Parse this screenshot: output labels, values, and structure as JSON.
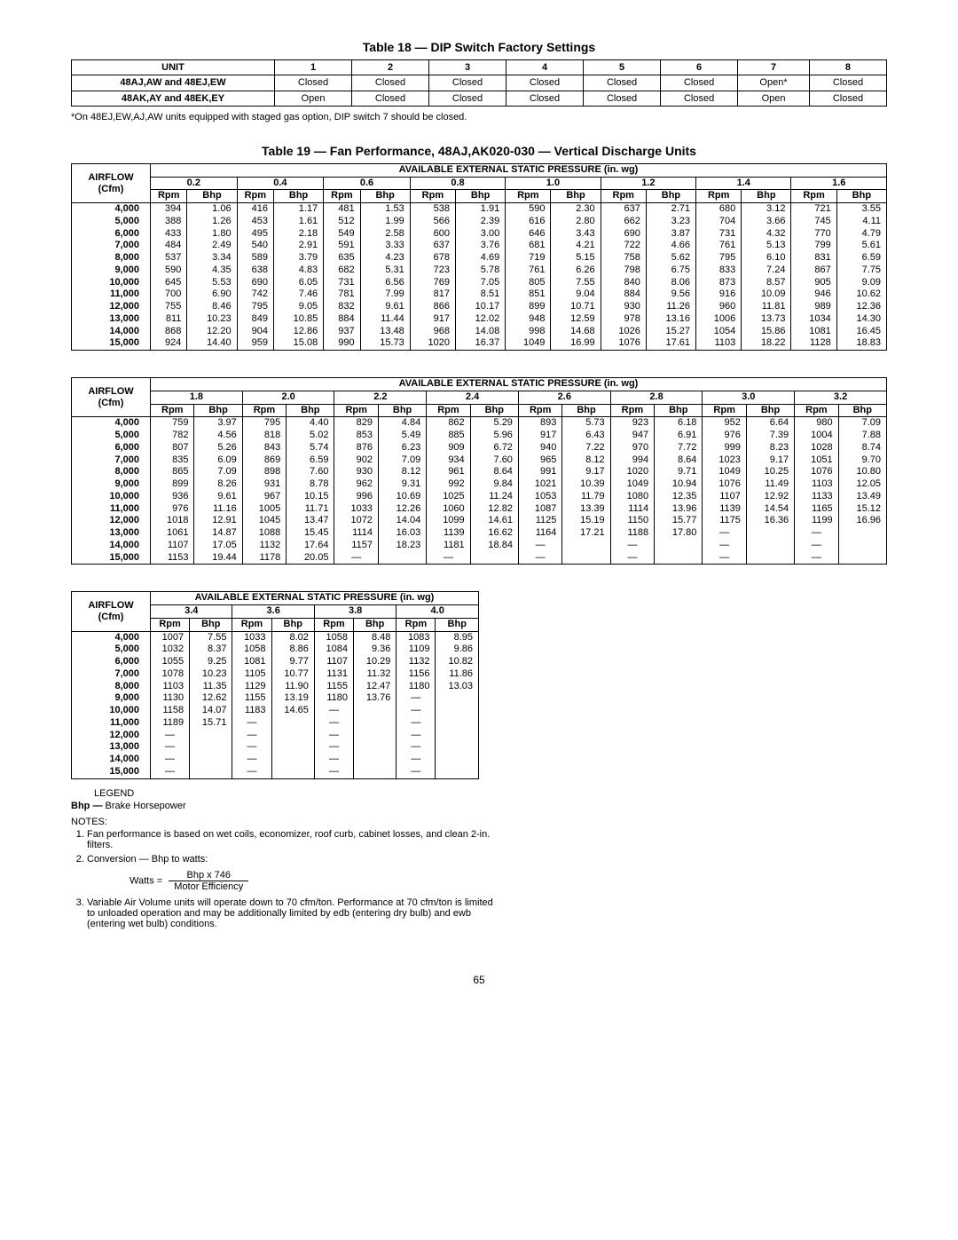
{
  "table18": {
    "title": "Table 18 — DIP Switch Factory Settings",
    "headers": [
      "UNIT",
      "1",
      "2",
      "3",
      "4",
      "5",
      "6",
      "7",
      "8"
    ],
    "rows": [
      {
        "unit": "48AJ,AW and 48EJ,EW",
        "cells": [
          "Closed",
          "Closed",
          "Closed",
          "Closed",
          "Closed",
          "Closed",
          "Open*",
          "Closed"
        ]
      },
      {
        "unit": "48AK,AY and 48EK,EY",
        "cells": [
          "Open",
          "Closed",
          "Closed",
          "Closed",
          "Closed",
          "Closed",
          "Open",
          "Closed"
        ]
      }
    ],
    "footnote": "*On 48EJ,EW,AJ,AW units equipped with staged gas option, DIP switch 7 should be closed."
  },
  "table19": {
    "title": "Table 19 — Fan Performance, 48AJ,AK020-030 — Vertical Discharge Units",
    "airflow_label_l1": "AIRFLOW",
    "airflow_label_l2": "(Cfm)",
    "pressure_header": "AVAILABLE EXTERNAL STATIC PRESSURE (in. wg)",
    "sub_rpm": "Rpm",
    "sub_bhp": "Bhp",
    "airflows": [
      "4,000",
      "5,000",
      "6,000",
      "7,000",
      "8,000",
      "9,000",
      "10,000",
      "11,000",
      "12,000",
      "13,000",
      "14,000",
      "15,000"
    ],
    "set1": {
      "pressures": [
        "0.2",
        "0.4",
        "0.6",
        "0.8",
        "1.0",
        "1.2",
        "1.4",
        "1.6"
      ],
      "rows": [
        [
          [
            "394",
            "1.06"
          ],
          [
            "416",
            "1.17"
          ],
          [
            "481",
            "1.53"
          ],
          [
            "538",
            "1.91"
          ],
          [
            "590",
            "2.30"
          ],
          [
            "637",
            "2.71"
          ],
          [
            "680",
            "3.12"
          ],
          [
            "721",
            "3.55"
          ]
        ],
        [
          [
            "388",
            "1.26"
          ],
          [
            "453",
            "1.61"
          ],
          [
            "512",
            "1.99"
          ],
          [
            "566",
            "2.39"
          ],
          [
            "616",
            "2.80"
          ],
          [
            "662",
            "3.23"
          ],
          [
            "704",
            "3.66"
          ],
          [
            "745",
            "4.11"
          ]
        ],
        [
          [
            "433",
            "1.80"
          ],
          [
            "495",
            "2.18"
          ],
          [
            "549",
            "2.58"
          ],
          [
            "600",
            "3.00"
          ],
          [
            "646",
            "3.43"
          ],
          [
            "690",
            "3.87"
          ],
          [
            "731",
            "4.32"
          ],
          [
            "770",
            "4.79"
          ]
        ],
        [
          [
            "484",
            "2.49"
          ],
          [
            "540",
            "2.91"
          ],
          [
            "591",
            "3.33"
          ],
          [
            "637",
            "3.76"
          ],
          [
            "681",
            "4.21"
          ],
          [
            "722",
            "4.66"
          ],
          [
            "761",
            "5.13"
          ],
          [
            "799",
            "5.61"
          ]
        ],
        [
          [
            "537",
            "3.34"
          ],
          [
            "589",
            "3.79"
          ],
          [
            "635",
            "4.23"
          ],
          [
            "678",
            "4.69"
          ],
          [
            "719",
            "5.15"
          ],
          [
            "758",
            "5.62"
          ],
          [
            "795",
            "6.10"
          ],
          [
            "831",
            "6.59"
          ]
        ],
        [
          [
            "590",
            "4.35"
          ],
          [
            "638",
            "4.83"
          ],
          [
            "682",
            "5.31"
          ],
          [
            "723",
            "5.78"
          ],
          [
            "761",
            "6.26"
          ],
          [
            "798",
            "6.75"
          ],
          [
            "833",
            "7.24"
          ],
          [
            "867",
            "7.75"
          ]
        ],
        [
          [
            "645",
            "5.53"
          ],
          [
            "690",
            "6.05"
          ],
          [
            "731",
            "6.56"
          ],
          [
            "769",
            "7.05"
          ],
          [
            "805",
            "7.55"
          ],
          [
            "840",
            "8.06"
          ],
          [
            "873",
            "8.57"
          ],
          [
            "905",
            "9.09"
          ]
        ],
        [
          [
            "700",
            "6.90"
          ],
          [
            "742",
            "7.46"
          ],
          [
            "781",
            "7.99"
          ],
          [
            "817",
            "8.51"
          ],
          [
            "851",
            "9.04"
          ],
          [
            "884",
            "9.56"
          ],
          [
            "916",
            "10.09"
          ],
          [
            "946",
            "10.62"
          ]
        ],
        [
          [
            "755",
            "8.46"
          ],
          [
            "795",
            "9.05"
          ],
          [
            "832",
            "9.61"
          ],
          [
            "866",
            "10.17"
          ],
          [
            "899",
            "10.71"
          ],
          [
            "930",
            "11.26"
          ],
          [
            "960",
            "11.81"
          ],
          [
            "989",
            "12.36"
          ]
        ],
        [
          [
            "811",
            "10.23"
          ],
          [
            "849",
            "10.85"
          ],
          [
            "884",
            "11.44"
          ],
          [
            "917",
            "12.02"
          ],
          [
            "948",
            "12.59"
          ],
          [
            "978",
            "13.16"
          ],
          [
            "1006",
            "13.73"
          ],
          [
            "1034",
            "14.30"
          ]
        ],
        [
          [
            "868",
            "12.20"
          ],
          [
            "904",
            "12.86"
          ],
          [
            "937",
            "13.48"
          ],
          [
            "968",
            "14.08"
          ],
          [
            "998",
            "14.68"
          ],
          [
            "1026",
            "15.27"
          ],
          [
            "1054",
            "15.86"
          ],
          [
            "1081",
            "16.45"
          ]
        ],
        [
          [
            "924",
            "14.40"
          ],
          [
            "959",
            "15.08"
          ],
          [
            "990",
            "15.73"
          ],
          [
            "1020",
            "16.37"
          ],
          [
            "1049",
            "16.99"
          ],
          [
            "1076",
            "17.61"
          ],
          [
            "1103",
            "18.22"
          ],
          [
            "1128",
            "18.83"
          ]
        ]
      ]
    },
    "set2": {
      "pressures": [
        "1.8",
        "2.0",
        "2.2",
        "2.4",
        "2.6",
        "2.8",
        "3.0",
        "3.2"
      ],
      "rows": [
        [
          [
            "759",
            "3.97"
          ],
          [
            "795",
            "4.40"
          ],
          [
            "829",
            "4.84"
          ],
          [
            "862",
            "5.29"
          ],
          [
            "893",
            "5.73"
          ],
          [
            "923",
            "6.18"
          ],
          [
            "952",
            "6.64"
          ],
          [
            "980",
            "7.09"
          ]
        ],
        [
          [
            "782",
            "4.56"
          ],
          [
            "818",
            "5.02"
          ],
          [
            "853",
            "5.49"
          ],
          [
            "885",
            "5.96"
          ],
          [
            "917",
            "6.43"
          ],
          [
            "947",
            "6.91"
          ],
          [
            "976",
            "7.39"
          ],
          [
            "1004",
            "7.88"
          ]
        ],
        [
          [
            "807",
            "5.26"
          ],
          [
            "843",
            "5.74"
          ],
          [
            "876",
            "6.23"
          ],
          [
            "909",
            "6.72"
          ],
          [
            "940",
            "7.22"
          ],
          [
            "970",
            "7.72"
          ],
          [
            "999",
            "8.23"
          ],
          [
            "1028",
            "8.74"
          ]
        ],
        [
          [
            "835",
            "6.09"
          ],
          [
            "869",
            "6.59"
          ],
          [
            "902",
            "7.09"
          ],
          [
            "934",
            "7.60"
          ],
          [
            "965",
            "8.12"
          ],
          [
            "994",
            "8.64"
          ],
          [
            "1023",
            "9.17"
          ],
          [
            "1051",
            "9.70"
          ]
        ],
        [
          [
            "865",
            "7.09"
          ],
          [
            "898",
            "7.60"
          ],
          [
            "930",
            "8.12"
          ],
          [
            "961",
            "8.64"
          ],
          [
            "991",
            "9.17"
          ],
          [
            "1020",
            "9.71"
          ],
          [
            "1049",
            "10.25"
          ],
          [
            "1076",
            "10.80"
          ]
        ],
        [
          [
            "899",
            "8.26"
          ],
          [
            "931",
            "8.78"
          ],
          [
            "962",
            "9.31"
          ],
          [
            "992",
            "9.84"
          ],
          [
            "1021",
            "10.39"
          ],
          [
            "1049",
            "10.94"
          ],
          [
            "1076",
            "11.49"
          ],
          [
            "1103",
            "12.05"
          ]
        ],
        [
          [
            "936",
            "9.61"
          ],
          [
            "967",
            "10.15"
          ],
          [
            "996",
            "10.69"
          ],
          [
            "1025",
            "11.24"
          ],
          [
            "1053",
            "11.79"
          ],
          [
            "1080",
            "12.35"
          ],
          [
            "1107",
            "12.92"
          ],
          [
            "1133",
            "13.49"
          ]
        ],
        [
          [
            "976",
            "11.16"
          ],
          [
            "1005",
            "11.71"
          ],
          [
            "1033",
            "12.26"
          ],
          [
            "1060",
            "12.82"
          ],
          [
            "1087",
            "13.39"
          ],
          [
            "1114",
            "13.96"
          ],
          [
            "1139",
            "14.54"
          ],
          [
            "1165",
            "15.12"
          ]
        ],
        [
          [
            "1018",
            "12.91"
          ],
          [
            "1045",
            "13.47"
          ],
          [
            "1072",
            "14.04"
          ],
          [
            "1099",
            "14.61"
          ],
          [
            "1125",
            "15.19"
          ],
          [
            "1150",
            "15.77"
          ],
          [
            "1175",
            "16.36"
          ],
          [
            "1199",
            "16.96"
          ]
        ],
        [
          [
            "1061",
            "14.87"
          ],
          [
            "1088",
            "15.45"
          ],
          [
            "1114",
            "16.03"
          ],
          [
            "1139",
            "16.62"
          ],
          [
            "1164",
            "17.21"
          ],
          [
            "1188",
            "17.80"
          ],
          [
            "—",
            "—"
          ],
          [
            "—",
            "—"
          ]
        ],
        [
          [
            "1107",
            "17.05"
          ],
          [
            "1132",
            "17.64"
          ],
          [
            "1157",
            "18.23"
          ],
          [
            "1181",
            "18.84"
          ],
          [
            "—",
            "—"
          ],
          [
            "—",
            "—"
          ],
          [
            "—",
            "—"
          ],
          [
            "—",
            "—"
          ]
        ],
        [
          [
            "1153",
            "19.44"
          ],
          [
            "1178",
            "20.05"
          ],
          [
            "—",
            "—"
          ],
          [
            "—",
            "—"
          ],
          [
            "—",
            "—"
          ],
          [
            "—",
            "—"
          ],
          [
            "—",
            "—"
          ],
          [
            "—",
            "—"
          ]
        ]
      ]
    },
    "set3": {
      "pressures": [
        "3.4",
        "3.6",
        "3.8",
        "4.0"
      ],
      "rows": [
        [
          [
            "1007",
            "7.55"
          ],
          [
            "1033",
            "8.02"
          ],
          [
            "1058",
            "8.48"
          ],
          [
            "1083",
            "8.95"
          ]
        ],
        [
          [
            "1032",
            "8.37"
          ],
          [
            "1058",
            "8.86"
          ],
          [
            "1084",
            "9.36"
          ],
          [
            "1109",
            "9.86"
          ]
        ],
        [
          [
            "1055",
            "9.25"
          ],
          [
            "1081",
            "9.77"
          ],
          [
            "1107",
            "10.29"
          ],
          [
            "1132",
            "10.82"
          ]
        ],
        [
          [
            "1078",
            "10.23"
          ],
          [
            "1105",
            "10.77"
          ],
          [
            "1131",
            "11.32"
          ],
          [
            "1156",
            "11.86"
          ]
        ],
        [
          [
            "1103",
            "11.35"
          ],
          [
            "1129",
            "11.90"
          ],
          [
            "1155",
            "12.47"
          ],
          [
            "1180",
            "13.03"
          ]
        ],
        [
          [
            "1130",
            "12.62"
          ],
          [
            "1155",
            "13.19"
          ],
          [
            "1180",
            "13.76"
          ],
          [
            "—",
            "—"
          ]
        ],
        [
          [
            "1158",
            "14.07"
          ],
          [
            "1183",
            "14.65"
          ],
          [
            "—",
            "—"
          ],
          [
            "—",
            "—"
          ]
        ],
        [
          [
            "1189",
            "15.71"
          ],
          [
            "—",
            "—"
          ],
          [
            "—",
            "—"
          ],
          [
            "—",
            "—"
          ]
        ],
        [
          [
            "—",
            "—"
          ],
          [
            "—",
            "—"
          ],
          [
            "—",
            "—"
          ],
          [
            "—",
            "—"
          ]
        ],
        [
          [
            "—",
            "—"
          ],
          [
            "—",
            "—"
          ],
          [
            "—",
            "—"
          ],
          [
            "—",
            "—"
          ]
        ],
        [
          [
            "—",
            "—"
          ],
          [
            "—",
            "—"
          ],
          [
            "—",
            "—"
          ],
          [
            "—",
            "—"
          ]
        ],
        [
          [
            "—",
            "—"
          ],
          [
            "—",
            "—"
          ],
          [
            "—",
            "—"
          ],
          [
            "—",
            "—"
          ]
        ]
      ]
    }
  },
  "legend": {
    "legend_label": "LEGEND",
    "bhp_line": "Bhp — Brake Horsepower",
    "notes_label": "NOTES:",
    "note1": "Fan performance is based on wet coils, economizer, roof curb, cabinet losses, and clean 2-in. filters.",
    "note2": "Conversion — Bhp to watts:",
    "formula_lhs": "Watts  =",
    "formula_num": "Bhp x 746",
    "formula_den": "Motor Efficiency",
    "note3": "Variable Air Volume units will operate down to 70 cfm/ton. Performance at 70 cfm/ton is limited to unloaded operation and may be additionally limited by edb (entering dry bulb) and ewb (entering wet bulb) conditions."
  },
  "page_number": "65"
}
